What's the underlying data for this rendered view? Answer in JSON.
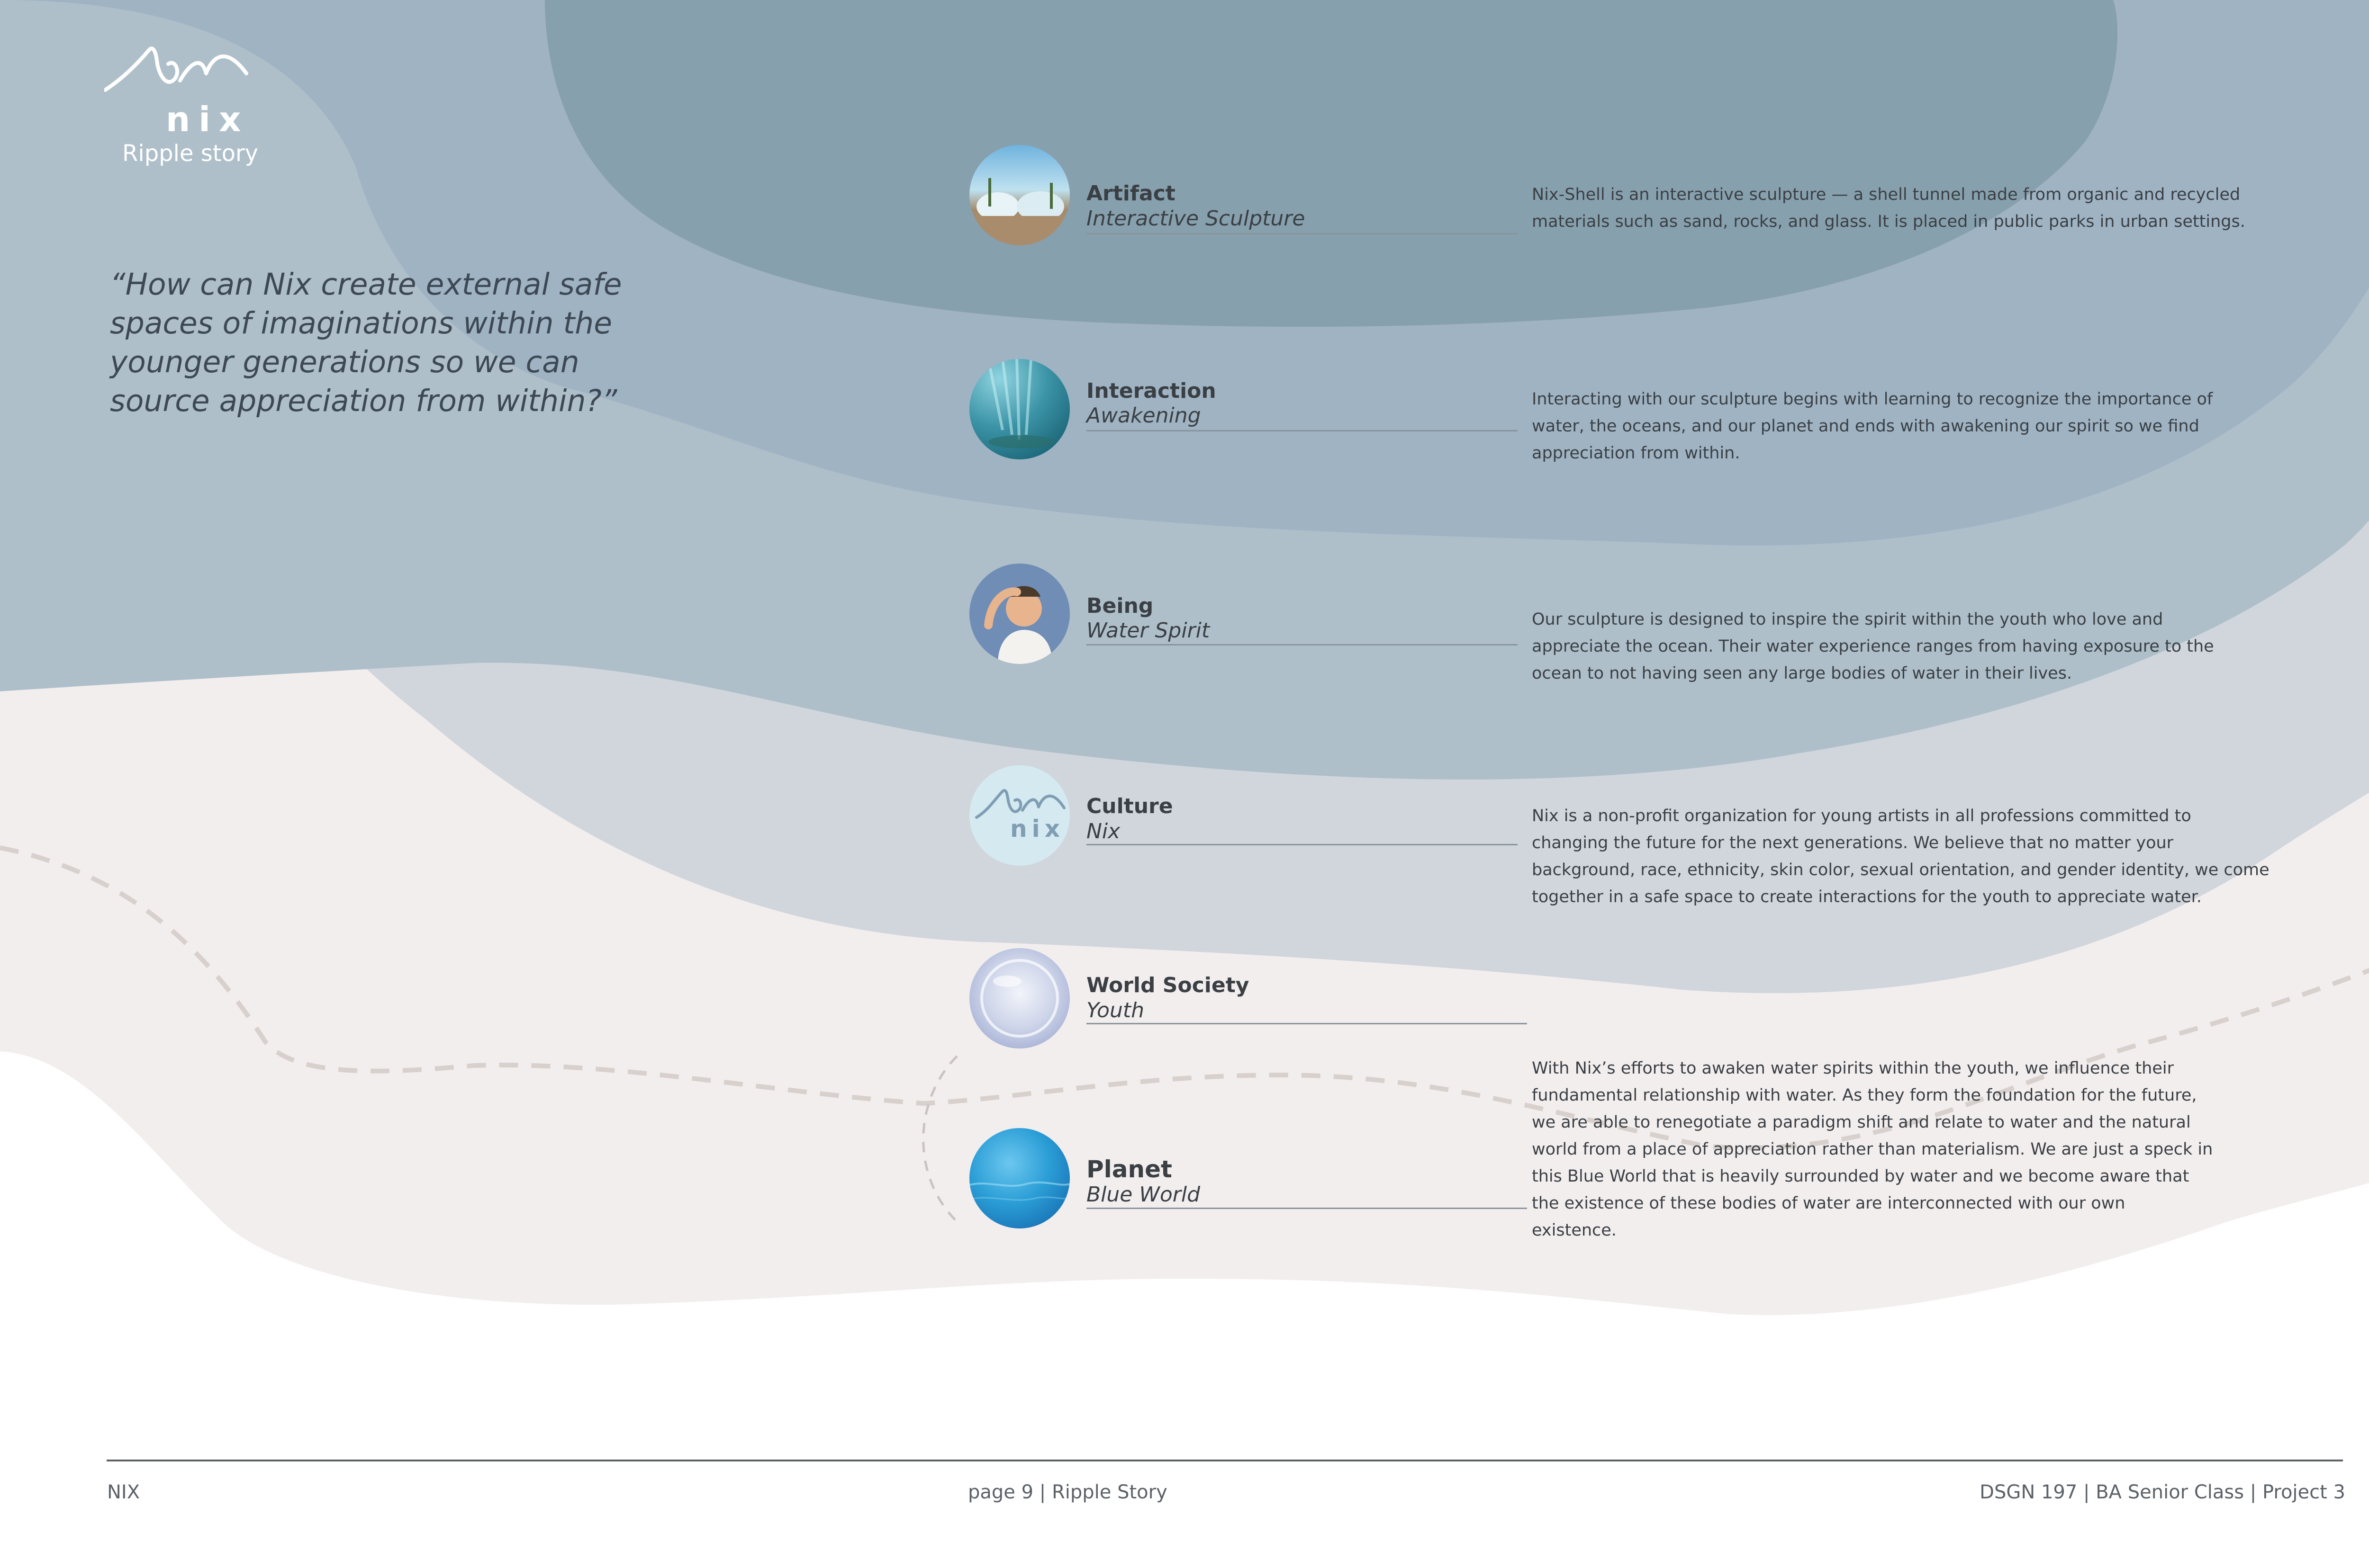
{
  "brand": {
    "logo_text": "nix",
    "subtitle": "Ripple story"
  },
  "quote": "“How can Nix create external safe spaces of imaginations within the younger generations so we can source appreciation from within?”",
  "items": [
    {
      "title": "Artifact",
      "subtitle": "Interactive Sculpture",
      "description": "Nix-Shell is an interactive sculpture — a shell tunnel made from organic and recycled materials such as sand, rocks, and glass. It is placed in public parks in urban settings.",
      "icon": "beach-sculpture-image"
    },
    {
      "title": "Interaction",
      "subtitle": "Awakening",
      "description": "Interacting with our sculpture begins with learning to recognize the importance of water, the oceans, and our planet and ends with awakening our spirit so we find appreciation from within.",
      "icon": "underwater-light-image"
    },
    {
      "title": "Being",
      "subtitle": "Water Spirit",
      "description": "Our sculpture is designed to inspire the spirit within the youth who love and appreciate the ocean. Their water experience ranges from having exposure to the ocean to not having seen any large bodies of water in their lives.",
      "icon": "child-portrait-image"
    },
    {
      "title": "Culture",
      "subtitle": "Nix",
      "description": "Nix is a non-profit organization for young artists in all professions committed to changing the future for the next generations. We believe that no matter your background, race, ethnicity, skin color, sexual orientation, and gender identity, we come together in a safe space to create interactions for the youth to appreciate water.",
      "icon": "nix-logo-icon",
      "icon_text": "nix"
    },
    {
      "title": "World Society",
      "subtitle": "Youth",
      "description": "",
      "icon": "bubble-image"
    },
    {
      "title": "Planet",
      "subtitle": "Blue World",
      "description": "With Nix’s efforts to awaken water spirits within the youth, we influence their fundamental relationship with water. As they form the foundation for the future, we are able to renegotiate a paradigm shift and relate to water and the natural world from a place of appreciation rather than materialism. We are just a speck in this Blue World that is heavily surrounded by water and we become aware that the existence of these bodies of water are interconnected with our own existence.",
      "icon": "ocean-image"
    }
  ],
  "footer": {
    "left": "NIX",
    "center": "page 9  | Ripple Story",
    "right": "DSGN 197 | BA Senior Class | Project 3"
  },
  "colors": {
    "wave_outer": "#f3eeee",
    "wave_light": "#d0d6dc",
    "wave_mid": "#aebfca",
    "wave_band": "#9fb3c3",
    "wave_deep": "#87a0ad",
    "accent_text": "#3a3f44"
  }
}
